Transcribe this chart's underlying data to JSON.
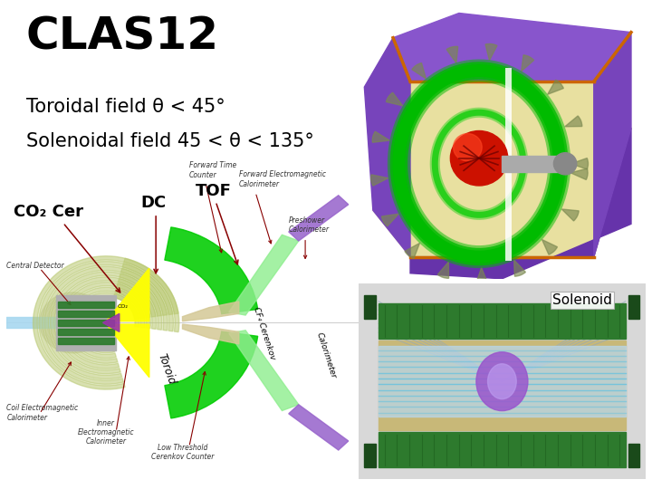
{
  "title": "CLAS12",
  "line1": "Toroidal field θ < 45°",
  "line2": "Solenoidal field 45 < θ < 135°",
  "label_dc": "DC",
  "label_tof": "TOF",
  "label_co2": "CO₂ Cer",
  "label_solenoid": "Solenoid",
  "label_toroid": "Toroid",
  "label_cf4": "CF₄ Cerenkov",
  "label_cal": "Calorimeter",
  "label_central": "Central Detector",
  "label_coil_em": "Coil Electromagnetic\nCalorimeter",
  "label_inner_em": "Inner\nElectromagnetic\nCalorimeter",
  "label_low_thresh": "Low Threshold\nCerenkov Counter",
  "label_preshower": "Preshower\nCalorimeter",
  "label_fwd_em": "Forward Electromagnetic\nCalorimeter",
  "label_fwd_tof": "Forward Time\nCounter",
  "bg_color": "#ffffff",
  "title_fontsize": 36,
  "subtitle_fontsize": 15,
  "label_fontsize_large": 13,
  "label_fontsize_small": 5.5
}
